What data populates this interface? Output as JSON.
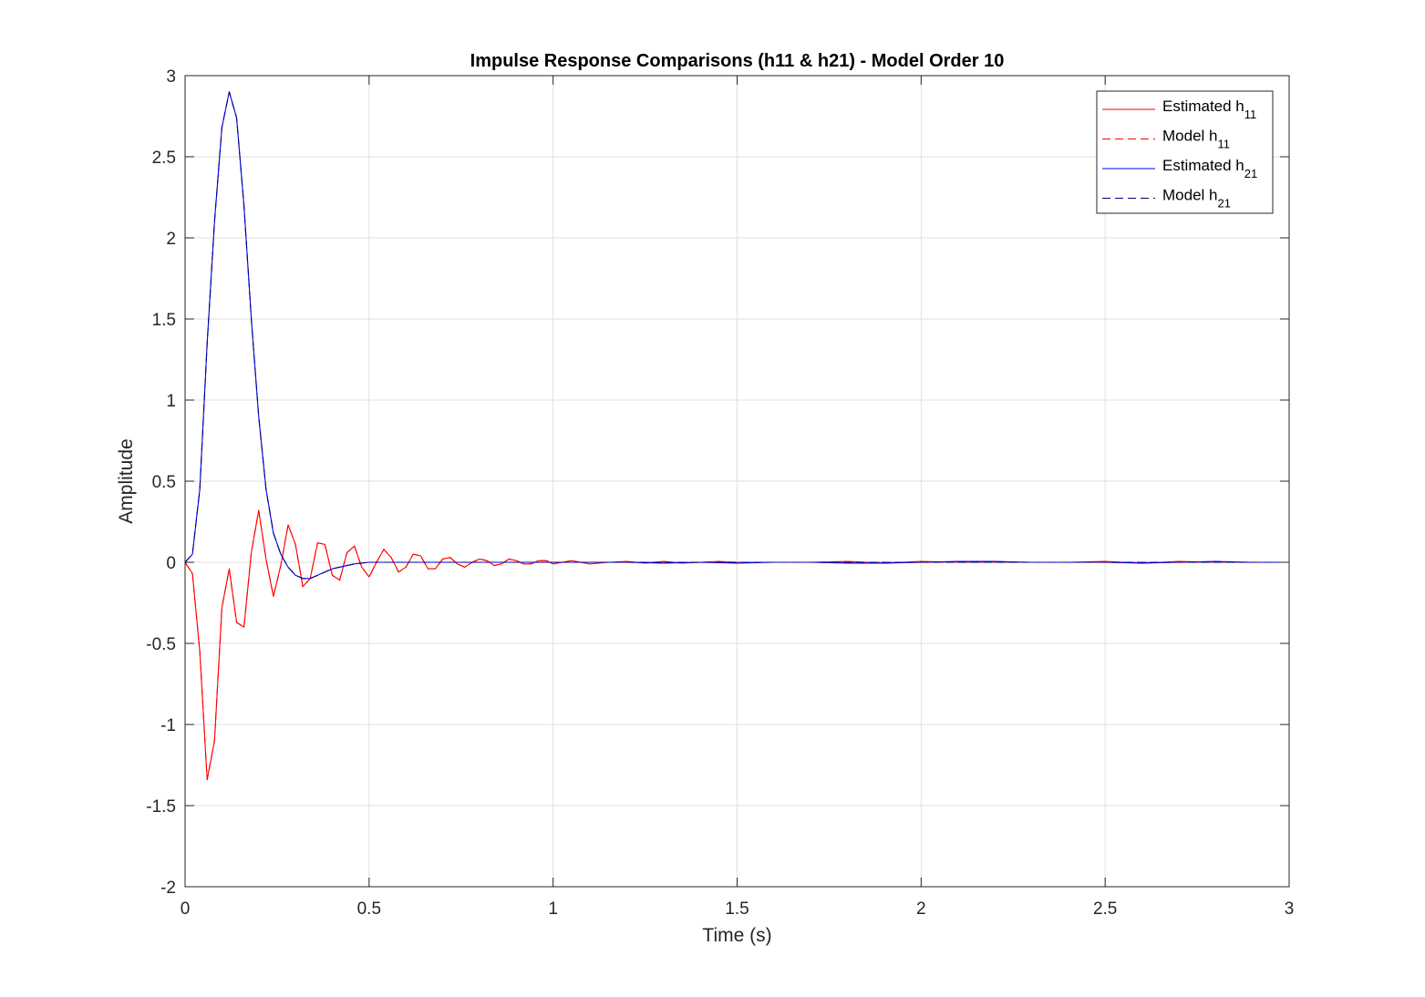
{
  "chart_data": {
    "type": "line",
    "title": "Impulse Response Comparisons (h11 & h21) - Model Order 10",
    "xlabel": "Time (s)",
    "ylabel": "Amplitude",
    "xlim": [
      0,
      3
    ],
    "ylim": [
      -2,
      3
    ],
    "xticks": [
      0,
      0.5,
      1,
      1.5,
      2,
      2.5,
      3
    ],
    "xtick_labels": [
      "0",
      "0.5",
      "1",
      "1.5",
      "2",
      "2.5",
      "3"
    ],
    "yticks": [
      -2,
      -1.5,
      -1,
      -0.5,
      0,
      0.5,
      1,
      1.5,
      2,
      2.5,
      3
    ],
    "ytick_labels": [
      "-2",
      "-1.5",
      "-1",
      "-0.5",
      "0",
      "0.5",
      "1",
      "1.5",
      "2",
      "2.5",
      "3"
    ],
    "grid": true,
    "legend_position": "top-right",
    "series": [
      {
        "name": "Estimated h11",
        "legend_base": "Estimated h",
        "legend_sub": "11",
        "color": "#ff0000",
        "style": "solid",
        "x": [
          0,
          0.02,
          0.04,
          0.06,
          0.08,
          0.1,
          0.12,
          0.14,
          0.16,
          0.18,
          0.2,
          0.22,
          0.24,
          0.26,
          0.28,
          0.3,
          0.32,
          0.34,
          0.36,
          0.38,
          0.4,
          0.42,
          0.44,
          0.46,
          0.48,
          0.5,
          0.52,
          0.54,
          0.56,
          0.58,
          0.6,
          0.62,
          0.64,
          0.66,
          0.68,
          0.7,
          0.72,
          0.74,
          0.76,
          0.78,
          0.8,
          0.82,
          0.84,
          0.86,
          0.88,
          0.9,
          0.92,
          0.94,
          0.96,
          0.98,
          1.0,
          1.05,
          1.1,
          1.15,
          1.2,
          1.25,
          1.3,
          1.35,
          1.4,
          1.45,
          1.5,
          1.6,
          1.7,
          1.8,
          1.9,
          2.0,
          2.1,
          2.2,
          2.3,
          2.4,
          2.5,
          2.6,
          2.7,
          2.8,
          2.9,
          3.0
        ],
        "y": [
          0,
          -0.07,
          -0.55,
          -1.34,
          -1.1,
          -0.28,
          -0.04,
          -0.37,
          -0.4,
          0.06,
          0.32,
          0.02,
          -0.21,
          -0.02,
          0.23,
          0.11,
          -0.15,
          -0.1,
          0.12,
          0.11,
          -0.08,
          -0.11,
          0.06,
          0.1,
          -0.03,
          -0.09,
          0.0,
          0.08,
          0.03,
          -0.06,
          -0.03,
          0.05,
          0.04,
          -0.04,
          -0.04,
          0.02,
          0.03,
          -0.01,
          -0.03,
          0.0,
          0.02,
          0.01,
          -0.02,
          -0.01,
          0.02,
          0.01,
          -0.01,
          -0.01,
          0.01,
          0.01,
          -0.01,
          0.01,
          -0.01,
          0.0,
          0.005,
          -0.005,
          0.005,
          -0.005,
          0.0,
          0.005,
          0.0,
          0.0,
          0.0,
          0.005,
          -0.005,
          0.005,
          0.0,
          0.0,
          0.0,
          0.0,
          0.005,
          -0.005,
          0.005,
          0.0,
          0.0,
          0.0
        ]
      },
      {
        "name": "Model h11",
        "legend_base": "Model h",
        "legend_sub": "11",
        "color": "#ff0000",
        "style": "dashed",
        "x": [
          0,
          0.02,
          0.04,
          0.06,
          0.08,
          0.1,
          0.12,
          0.14,
          0.16,
          0.18,
          0.2,
          0.22,
          0.24,
          0.26,
          0.28,
          0.3,
          0.32,
          0.34,
          0.36,
          0.38,
          0.4,
          0.42,
          0.44,
          0.46,
          0.48,
          0.5,
          0.52,
          0.54,
          0.56,
          0.58,
          0.6,
          0.62,
          0.64,
          0.66,
          0.68,
          0.7,
          0.72,
          0.74,
          0.76,
          0.78,
          0.8,
          0.82,
          0.84,
          0.86,
          0.88,
          0.9,
          0.92,
          0.94,
          0.96,
          0.98,
          1.0,
          1.2,
          1.4,
          1.6,
          1.8,
          2.0,
          2.2,
          2.4,
          2.6,
          2.8,
          3.0
        ],
        "y": [
          0,
          -0.07,
          -0.55,
          -1.34,
          -1.1,
          -0.28,
          -0.04,
          -0.37,
          -0.4,
          0.06,
          0.32,
          0.02,
          -0.21,
          -0.02,
          0.23,
          0.11,
          -0.15,
          -0.1,
          0.12,
          0.11,
          -0.08,
          -0.11,
          0.06,
          0.1,
          -0.03,
          -0.09,
          0.0,
          0.08,
          0.03,
          -0.06,
          -0.03,
          0.05,
          0.04,
          -0.04,
          -0.04,
          0.02,
          0.03,
          -0.01,
          -0.03,
          0.0,
          0.02,
          0.01,
          -0.02,
          -0.01,
          0.02,
          0.01,
          -0.01,
          -0.01,
          0.01,
          0.01,
          0.0,
          0.0,
          0.0,
          0.0,
          0.0,
          0.0,
          0.0,
          0.0,
          0.0,
          0.0,
          0.0
        ]
      },
      {
        "name": "Estimated h21",
        "legend_base": "Estimated h",
        "legend_sub": "21",
        "color": "#0000ff",
        "style": "solid",
        "x": [
          0,
          0.02,
          0.04,
          0.06,
          0.08,
          0.1,
          0.12,
          0.14,
          0.16,
          0.18,
          0.2,
          0.22,
          0.24,
          0.26,
          0.28,
          0.3,
          0.32,
          0.34,
          0.36,
          0.38,
          0.4,
          0.42,
          0.44,
          0.46,
          0.48,
          0.5,
          0.55,
          0.6,
          0.65,
          0.7,
          0.8,
          0.9,
          1.0,
          1.1,
          1.2,
          1.3,
          1.4,
          1.5,
          1.6,
          1.7,
          1.8,
          1.9,
          2.0,
          2.1,
          2.2,
          2.3,
          2.4,
          2.5,
          2.6,
          2.7,
          2.8,
          2.9,
          3.0
        ],
        "y": [
          0,
          0.05,
          0.45,
          1.35,
          2.1,
          2.68,
          2.9,
          2.74,
          2.2,
          1.5,
          0.9,
          0.45,
          0.18,
          0.05,
          -0.03,
          -0.08,
          -0.1,
          -0.1,
          -0.08,
          -0.06,
          -0.04,
          -0.03,
          -0.02,
          -0.01,
          -0.005,
          0.0,
          0.0,
          0.0,
          0.0,
          0.0,
          0.0,
          0.0,
          0.0,
          0.0,
          0.0,
          -0.005,
          0.0,
          -0.005,
          0.0,
          0.0,
          -0.005,
          -0.005,
          0.0,
          0.005,
          0.005,
          0.0,
          0.0,
          0.0,
          -0.005,
          0.0,
          0.005,
          0.0,
          0.0
        ]
      },
      {
        "name": "Model h21",
        "legend_base": "Model h",
        "legend_sub": "21",
        "color": "#000080",
        "style": "dashed",
        "x": [
          0,
          0.02,
          0.04,
          0.06,
          0.08,
          0.1,
          0.12,
          0.14,
          0.16,
          0.18,
          0.2,
          0.22,
          0.24,
          0.26,
          0.28,
          0.3,
          0.32,
          0.34,
          0.36,
          0.38,
          0.4,
          0.42,
          0.44,
          0.46,
          0.48,
          0.5,
          0.6,
          0.8,
          1.0,
          1.5,
          2.0,
          2.5,
          3.0
        ],
        "y": [
          0,
          0.05,
          0.45,
          1.35,
          2.1,
          2.68,
          2.9,
          2.74,
          2.2,
          1.5,
          0.9,
          0.45,
          0.18,
          0.05,
          -0.03,
          -0.08,
          -0.1,
          -0.1,
          -0.08,
          -0.06,
          -0.04,
          -0.03,
          -0.02,
          -0.01,
          -0.005,
          0.0,
          0.0,
          0.0,
          0.0,
          0.0,
          0.0,
          0.0,
          0.0
        ]
      }
    ]
  }
}
